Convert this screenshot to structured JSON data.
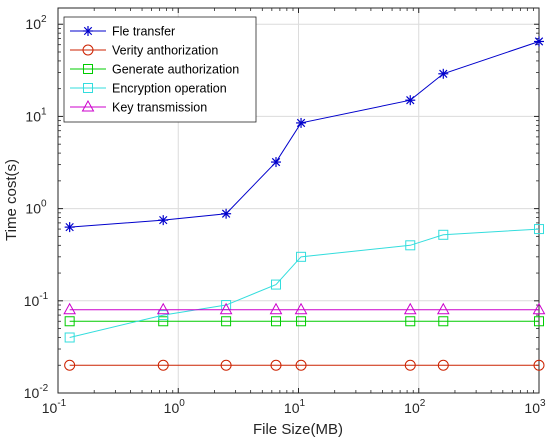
{
  "chart_data": {
    "type": "line",
    "title": "",
    "xlabel": "File Size(MB)",
    "ylabel": "Time cost(s)",
    "xscale": "log",
    "yscale": "log",
    "xlim": [
      0.1,
      1000
    ],
    "ylim": [
      0.01,
      150
    ],
    "grid": true,
    "legend_position": "top-left",
    "x_ticks": [
      {
        "base": "10",
        "exp": "-1",
        "value": 0.1
      },
      {
        "base": "10",
        "exp": "0",
        "value": 1
      },
      {
        "base": "10",
        "exp": "1",
        "value": 10
      },
      {
        "base": "10",
        "exp": "2",
        "value": 100
      },
      {
        "base": "10",
        "exp": "3",
        "value": 1000
      }
    ],
    "y_ticks": [
      {
        "base": "10",
        "exp": "-2",
        "value": 0.01
      },
      {
        "base": "10",
        "exp": "-1",
        "value": 0.1
      },
      {
        "base": "10",
        "exp": "0",
        "value": 1
      },
      {
        "base": "10",
        "exp": "1",
        "value": 10
      },
      {
        "base": "10",
        "exp": "2",
        "value": 100
      }
    ],
    "x": [
      0.125,
      0.75,
      2.5,
      6.5,
      10.5,
      85,
      160,
      1000
    ],
    "series": [
      {
        "name": "Fle transfer",
        "color": "#0000cc",
        "marker": "asterisk",
        "values": [
          0.63,
          0.75,
          0.88,
          3.2,
          8.5,
          15,
          29,
          65
        ]
      },
      {
        "name": "Verity anthorization",
        "color": "#cc2200",
        "marker": "circle",
        "values": [
          0.02,
          0.02,
          0.02,
          0.02,
          0.02,
          0.02,
          0.02,
          0.02
        ]
      },
      {
        "name": "Generate authorization",
        "color": "#00cc00",
        "marker": "square",
        "values": [
          0.06,
          0.06,
          0.06,
          0.06,
          0.06,
          0.06,
          0.06,
          0.06
        ]
      },
      {
        "name": "Encryption operation",
        "color": "#33dddd",
        "marker": "square",
        "values": [
          0.04,
          0.07,
          0.09,
          0.15,
          0.3,
          0.4,
          0.52,
          0.6
        ]
      },
      {
        "name": "Key transmission",
        "color": "#cc00cc",
        "marker": "triangle",
        "values": [
          0.08,
          0.08,
          0.08,
          0.08,
          0.08,
          0.08,
          0.08,
          0.08
        ]
      }
    ]
  }
}
